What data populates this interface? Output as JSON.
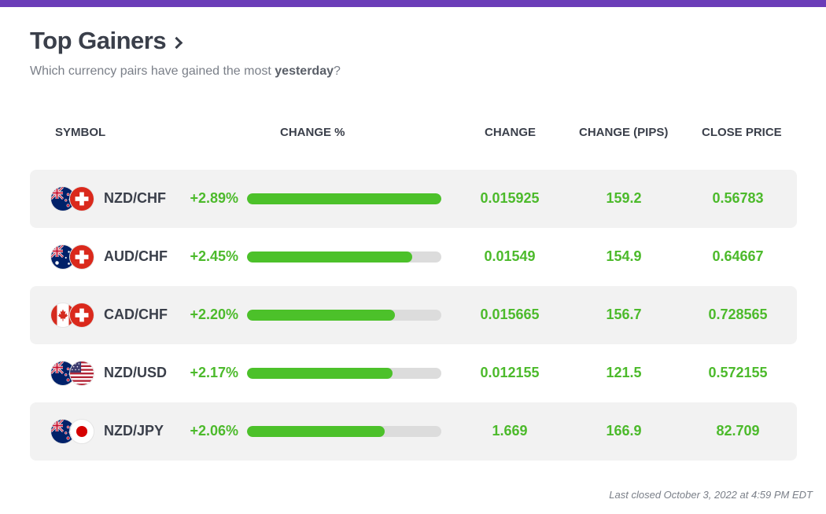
{
  "accent_color": "#6b3db8",
  "gain_color": "#4cba2b",
  "header": {
    "title": "Top Gainers",
    "subtitle_pre": "Which currency pairs have gained the most ",
    "subtitle_bold": "yesterday",
    "subtitle_post": "?"
  },
  "columns": {
    "symbol": "SYMBOL",
    "change_pct": "CHANGE %",
    "change": "CHANGE",
    "change_pips": "CHANGE (PIPS)",
    "close_price": "CLOSE PRICE"
  },
  "rows": [
    {
      "symbol": "NZD/CHF",
      "base_flag": "nz-flag",
      "quote_flag": "ch-flag",
      "change_pct": "+2.89%",
      "bar_fraction": 1.0,
      "change": "0.015925",
      "change_pips": "159.2",
      "close_price": "0.56783"
    },
    {
      "symbol": "AUD/CHF",
      "base_flag": "au-flag",
      "quote_flag": "ch-flag",
      "change_pct": "+2.45%",
      "bar_fraction": 0.85,
      "change": "0.01549",
      "change_pips": "154.9",
      "close_price": "0.64667"
    },
    {
      "symbol": "CAD/CHF",
      "base_flag": "ca-flag",
      "quote_flag": "ch-flag",
      "change_pct": "+2.20%",
      "bar_fraction": 0.76,
      "change": "0.015665",
      "change_pips": "156.7",
      "close_price": "0.728565"
    },
    {
      "symbol": "NZD/USD",
      "base_flag": "nz-flag",
      "quote_flag": "us-flag",
      "change_pct": "+2.17%",
      "bar_fraction": 0.75,
      "change": "0.012155",
      "change_pips": "121.5",
      "close_price": "0.572155"
    },
    {
      "symbol": "NZD/JPY",
      "base_flag": "nz-flag",
      "quote_flag": "jp-flag",
      "change_pct": "+2.06%",
      "bar_fraction": 0.71,
      "change": "1.669",
      "change_pips": "166.9",
      "close_price": "82.709"
    }
  ],
  "footer": "Last closed October 3, 2022 at 4:59 PM EDT"
}
